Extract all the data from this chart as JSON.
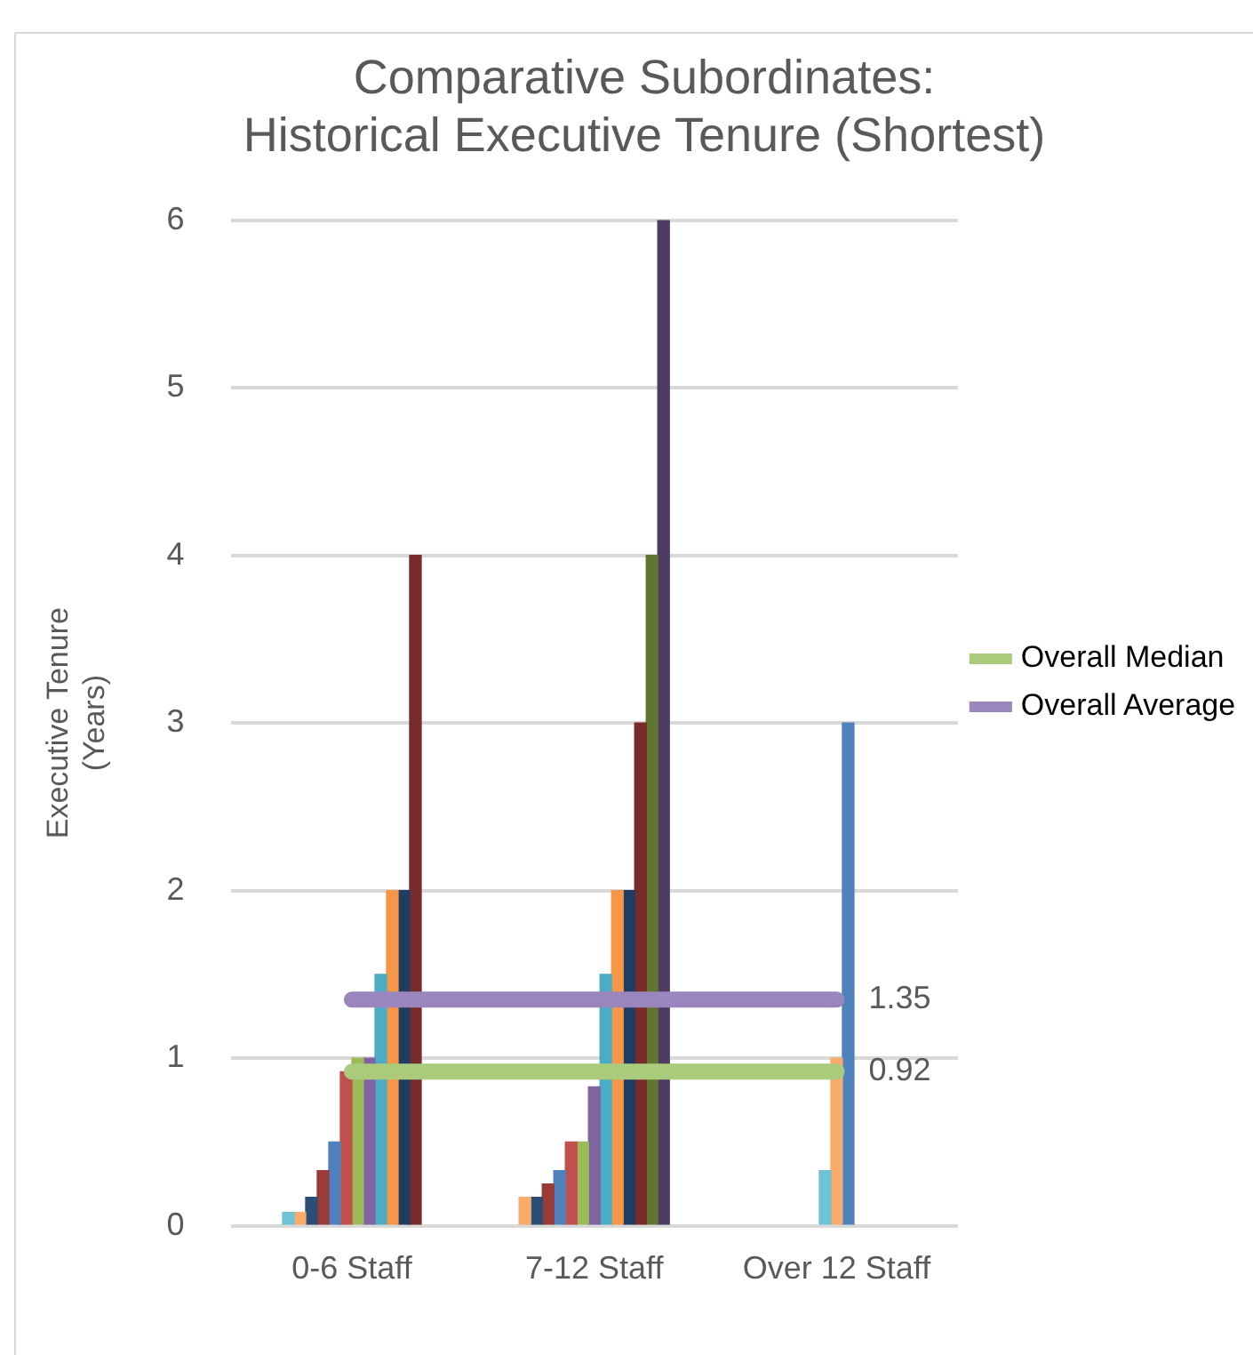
{
  "chart_data": {
    "type": "bar",
    "title": "Comparative Subordinates:\nHistorical Executive Tenure (Shortest)",
    "ylabel": "Executive Tenure\n(Years)",
    "categories": [
      "0-6 Staff",
      "7-12 Staff",
      "Over 12 Staff"
    ],
    "series": [
      {
        "color": "#6fc3d6",
        "values": [
          0.08,
          null,
          0.33
        ]
      },
      {
        "color": "#f9ab6b",
        "values": [
          0.08,
          0.17,
          1
        ]
      },
      {
        "color": "#2c4d75",
        "values": [
          0.17,
          0.17,
          null
        ]
      },
      {
        "color": "#9b3b38",
        "values": [
          0.33,
          0.25,
          null
        ]
      },
      {
        "color": "#4f81bd",
        "values": [
          0.5,
          0.33,
          3
        ]
      },
      {
        "color": "#c0504d",
        "values": [
          0.92,
          0.5,
          null
        ]
      },
      {
        "color": "#9bbb59",
        "values": [
          1,
          0.5,
          null
        ]
      },
      {
        "color": "#8064a2",
        "values": [
          1,
          0.83,
          null
        ]
      },
      {
        "color": "#4bacc6",
        "values": [
          1.5,
          1.5,
          null
        ]
      },
      {
        "color": "#f79646",
        "values": [
          2,
          2,
          null
        ]
      },
      {
        "color": "#1f3c63",
        "values": [
          2,
          2,
          null
        ]
      },
      {
        "color": "#772c2a",
        "values": [
          4,
          3,
          null
        ]
      },
      {
        "color": "#5f7530",
        "values": [
          null,
          4,
          null
        ]
      },
      {
        "color": "#4d3b62",
        "values": [
          null,
          6,
          null
        ]
      },
      {
        "type": "line",
        "name": "Overall Median",
        "color": "#a9cb7b",
        "values": [
          0.92,
          0.92,
          0.92
        ],
        "value_labels": [
          null,
          null,
          "0.92"
        ]
      },
      {
        "type": "line",
        "name": "Overall Average",
        "color": "#9b85bd",
        "values": [
          1.35,
          1.35,
          1.35
        ],
        "value_labels": [
          null,
          null,
          "1.35"
        ]
      }
    ],
    "ylim": [
      0,
      6
    ],
    "yticks": [
      0,
      1,
      2,
      3,
      4,
      5,
      6
    ],
    "grid": "y",
    "legend": "right",
    "marker": "none"
  }
}
